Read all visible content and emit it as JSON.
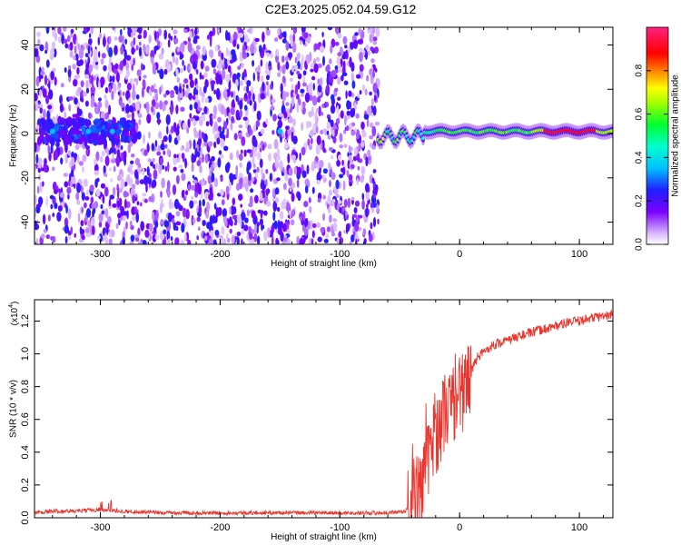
{
  "title": "C2E3.2025.052.04.59.G12",
  "colors": {
    "line": "#e8342c",
    "frame": "#000000",
    "background": "#ffffff"
  },
  "chart_data": [
    {
      "type": "heatmap",
      "xlabel": "Height of straight line (km)",
      "ylabel": "Frequency (Hz)",
      "xlim": [
        -355,
        128
      ],
      "ylim": [
        -50,
        48
      ],
      "xticks": [
        -300,
        -200,
        -100,
        0,
        100
      ],
      "yticks": [
        -40,
        -20,
        0,
        20,
        40
      ],
      "grid": false,
      "colorbar": {
        "label": "Normalized spectral amplitude",
        "range": [
          0,
          1
        ],
        "ticks": [
          0.0,
          0.2,
          0.4,
          0.6,
          0.8
        ],
        "colormap": "rainbow (white-violet-blue-cyan-green-yellow-red-pink)"
      },
      "features": [
        {
          "region": "noise",
          "x_range": [
            -355,
            -68
          ],
          "y_range": [
            -50,
            48
          ],
          "amplitude": 0.15
        },
        {
          "region": "carrier",
          "x_range": [
            -68,
            128
          ],
          "y_center": 1,
          "amplitude_max": 0.95
        },
        {
          "region": "hot-spots",
          "x_values": [
            -340,
            -310,
            -290,
            -150
          ],
          "y_center": 1,
          "amplitude": 0.3
        }
      ]
    },
    {
      "type": "line",
      "xlabel": "Height of straight line (km)",
      "ylabel": "SNR (10 * v/v)",
      "y_multiplier": "(x10",
      "y_multiplier_exp": "4",
      "y_multiplier_close": ")",
      "xlim": [
        -355,
        128
      ],
      "ylim": [
        0,
        1.33
      ],
      "xticks": [
        -300,
        -200,
        -100,
        0,
        100
      ],
      "yticks": [
        0.0,
        0.2,
        0.4,
        0.6,
        0.8,
        1.0,
        1.2
      ],
      "grid": false,
      "series": [
        {
          "x": [
            -355,
            -340,
            -320,
            -300,
            -280,
            -250,
            -200,
            -150,
            -100,
            -60,
            -45,
            -40,
            -35,
            -30,
            -25,
            -20,
            -15,
            -10,
            -5,
            0,
            5,
            10,
            15,
            20,
            25,
            30,
            40,
            50,
            60,
            70,
            80,
            90,
            100,
            110,
            120,
            128
          ],
          "values": [
            0.03,
            0.04,
            0.04,
            0.05,
            0.04,
            0.03,
            0.03,
            0.03,
            0.03,
            0.03,
            0.04,
            0.1,
            0.15,
            0.25,
            0.4,
            0.5,
            0.6,
            0.68,
            0.7,
            0.74,
            0.8,
            0.9,
            0.98,
            1.01,
            1.04,
            1.06,
            1.08,
            1.11,
            1.13,
            1.15,
            1.17,
            1.19,
            1.2,
            1.22,
            1.23,
            1.24
          ]
        }
      ]
    }
  ]
}
